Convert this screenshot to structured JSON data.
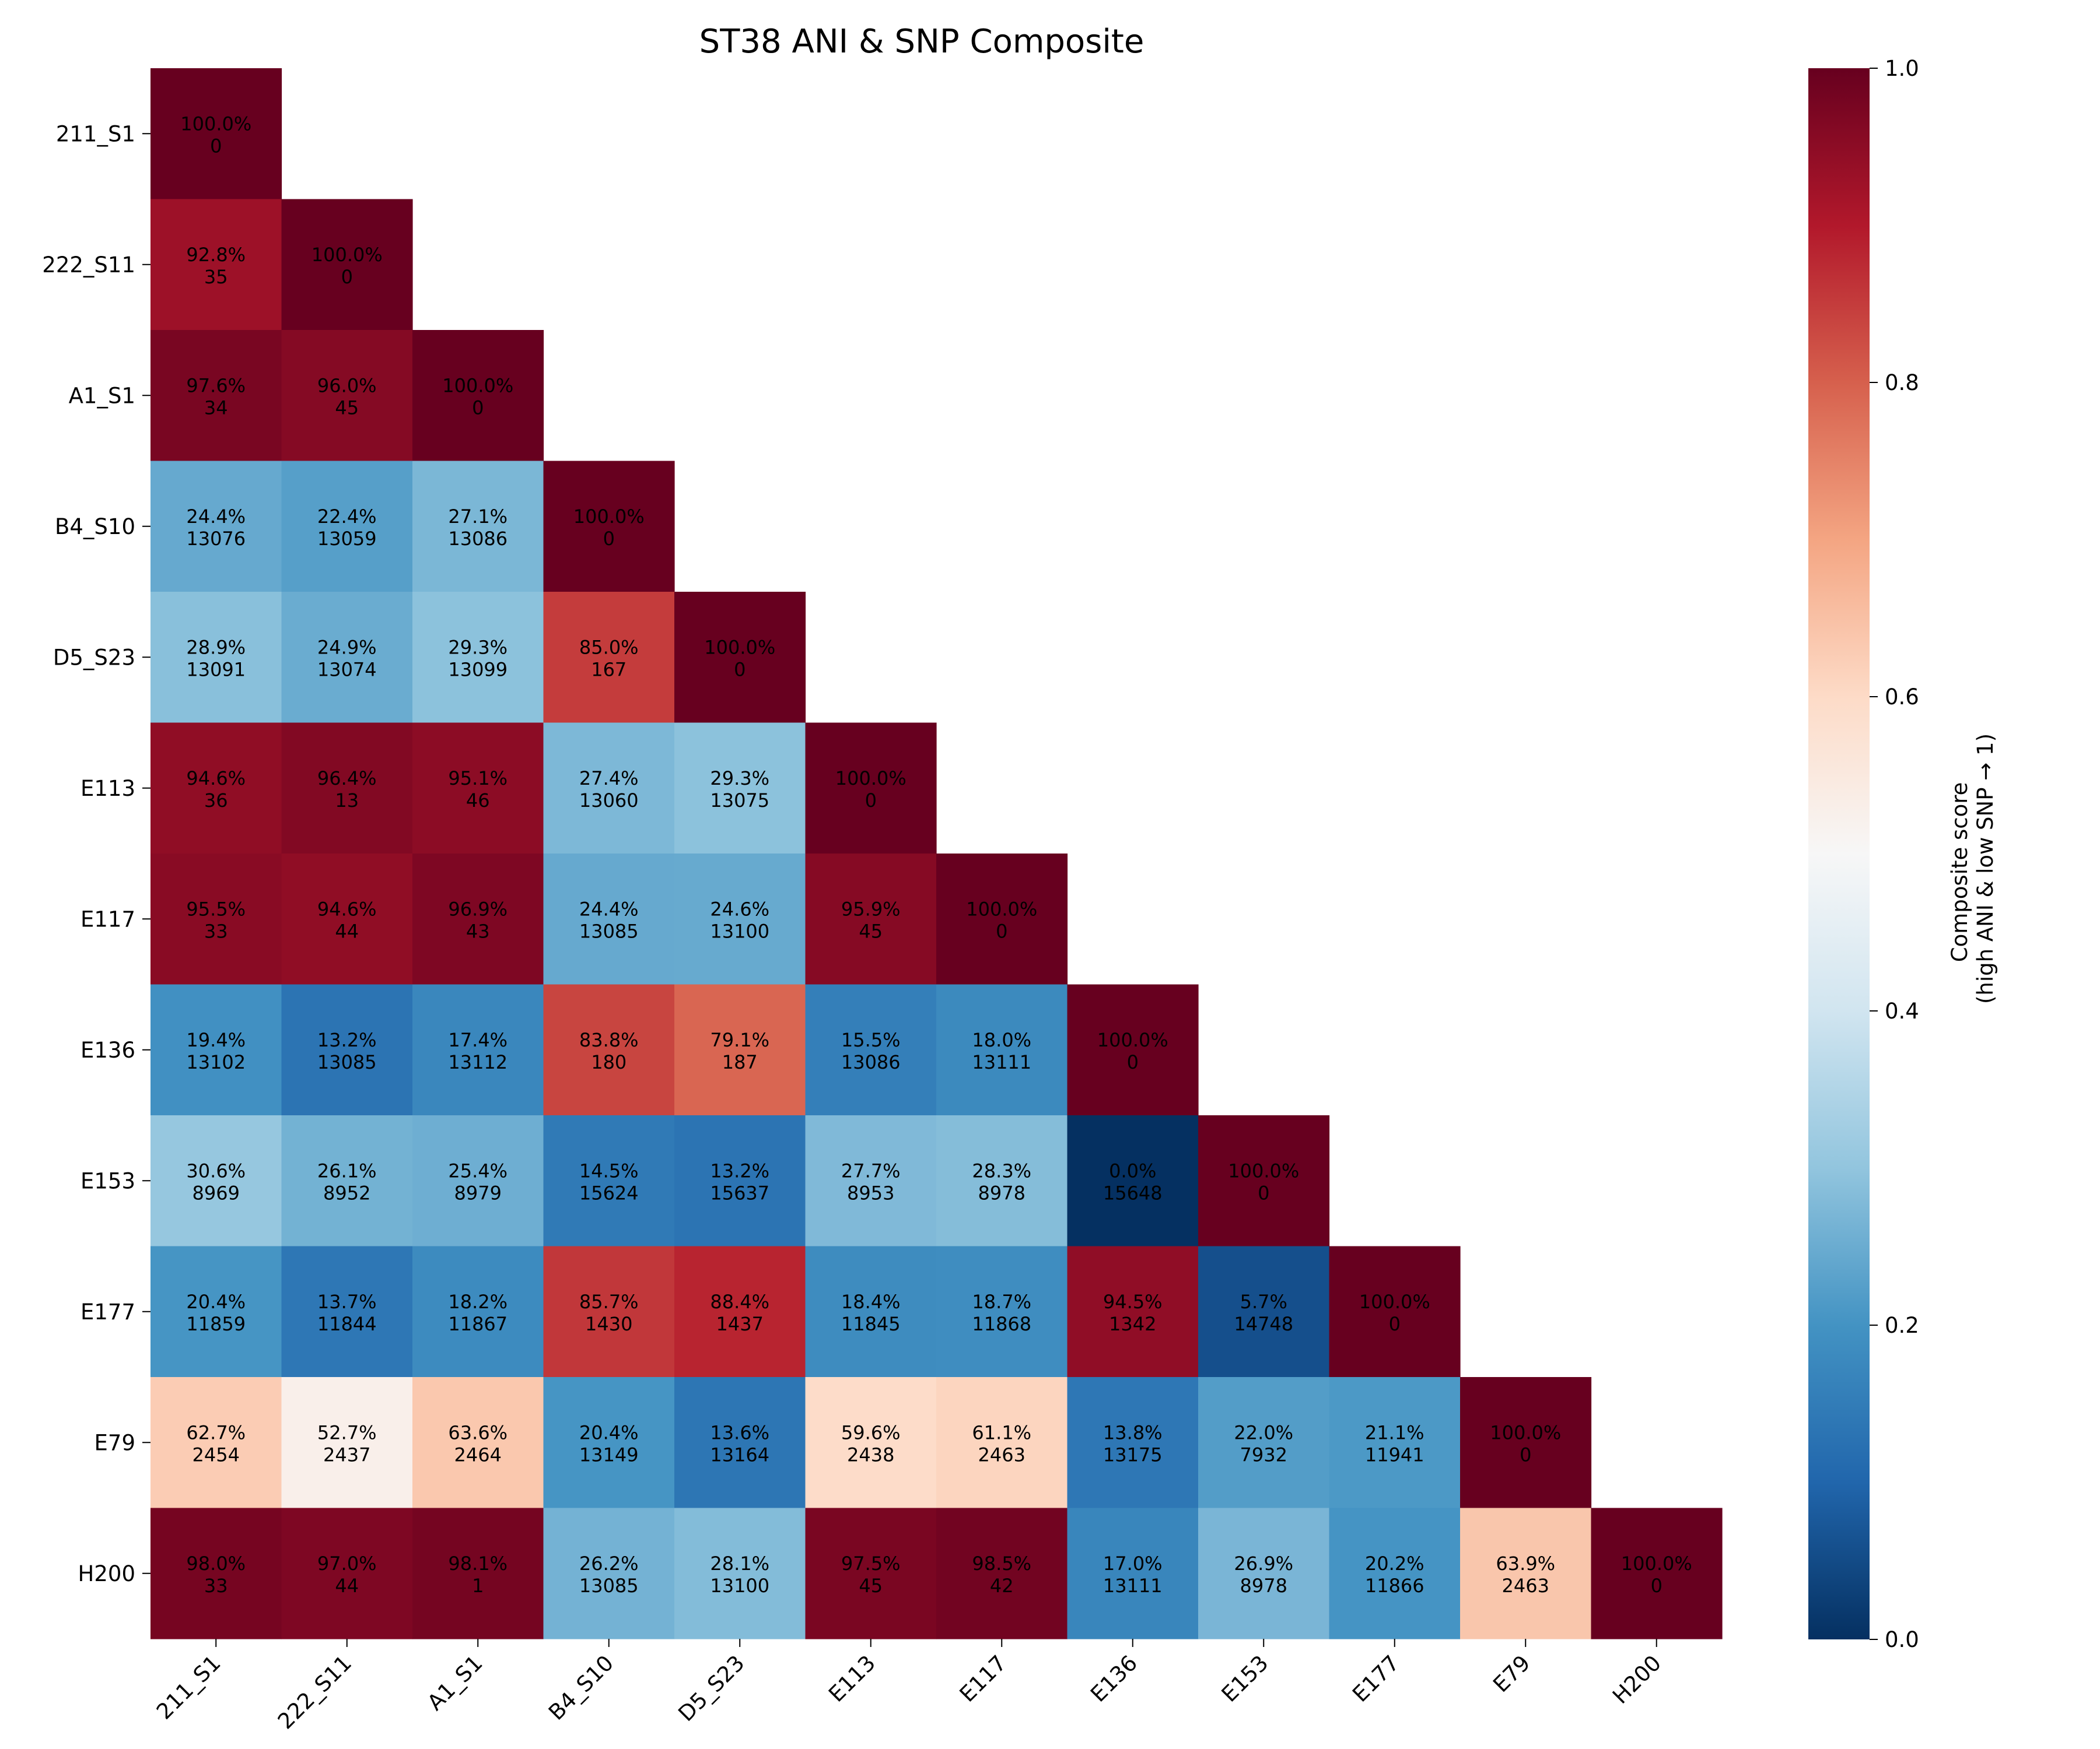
{
  "chart_data": {
    "type": "heatmap",
    "title": "ST38 ANI & SNP Composite",
    "xlabel": "",
    "ylabel": "",
    "labels": [
      "211_S1",
      "222_S11",
      "A1_S1",
      "B4_S10",
      "D5_S23",
      "E113",
      "E117",
      "E136",
      "E153",
      "E177",
      "E79",
      "H200"
    ],
    "lower_triangle_only": true,
    "composite_pct": [
      [
        "100.0%"
      ],
      [
        "92.8%",
        "100.0%"
      ],
      [
        "97.6%",
        "96.0%",
        "100.0%"
      ],
      [
        "24.4%",
        "22.4%",
        "27.1%",
        "100.0%"
      ],
      [
        "28.9%",
        "24.9%",
        "29.3%",
        "85.0%",
        "100.0%"
      ],
      [
        "94.6%",
        "96.4%",
        "95.1%",
        "27.4%",
        "29.3%",
        "100.0%"
      ],
      [
        "95.5%",
        "94.6%",
        "96.9%",
        "24.4%",
        "24.6%",
        "95.9%",
        "100.0%"
      ],
      [
        "19.4%",
        "13.2%",
        "17.4%",
        "83.8%",
        "79.1%",
        "15.5%",
        "18.0%",
        "100.0%"
      ],
      [
        "30.6%",
        "26.1%",
        "25.4%",
        "14.5%",
        "13.2%",
        "27.7%",
        "28.3%",
        "0.0%",
        "100.0%"
      ],
      [
        "20.4%",
        "13.7%",
        "18.2%",
        "85.7%",
        "88.4%",
        "18.4%",
        "18.7%",
        "94.5%",
        "5.7%",
        "100.0%"
      ],
      [
        "62.7%",
        "52.7%",
        "63.6%",
        "20.4%",
        "13.6%",
        "59.6%",
        "61.1%",
        "13.8%",
        "22.0%",
        "21.1%",
        "100.0%"
      ],
      [
        "98.0%",
        "97.0%",
        "98.1%",
        "26.2%",
        "28.1%",
        "97.5%",
        "98.5%",
        "17.0%",
        "26.9%",
        "20.2%",
        "63.9%",
        "100.0%"
      ]
    ],
    "snp": [
      [
        "0"
      ],
      [
        "35",
        "0"
      ],
      [
        "34",
        "45",
        "0"
      ],
      [
        "13076",
        "13059",
        "13086",
        "0"
      ],
      [
        "13091",
        "13074",
        "13099",
        "167",
        "0"
      ],
      [
        "36",
        "13",
        "46",
        "13060",
        "13075",
        "0"
      ],
      [
        "33",
        "44",
        "43",
        "13085",
        "13100",
        "45",
        "0"
      ],
      [
        "13102",
        "13085",
        "13112",
        "180",
        "187",
        "13086",
        "13111",
        "0"
      ],
      [
        "8969",
        "8952",
        "8979",
        "15624",
        "15637",
        "8953",
        "8978",
        "15648",
        "0"
      ],
      [
        "11859",
        "11844",
        "11867",
        "1430",
        "1437",
        "11845",
        "11868",
        "1342",
        "14748",
        "0"
      ],
      [
        "2454",
        "2437",
        "2464",
        "13149",
        "13164",
        "2438",
        "2463",
        "13175",
        "7932",
        "11941",
        "0"
      ],
      [
        "33",
        "44",
        "1",
        "13085",
        "13100",
        "45",
        "42",
        "13111",
        "8978",
        "11866",
        "2463",
        "0"
      ]
    ],
    "colorbar": {
      "label_line1": "Composite score",
      "label_line2": "(high ANI & low SNP → 1)",
      "range": [
        0,
        1
      ],
      "ticks": [
        "0.0",
        "0.2",
        "0.4",
        "0.6",
        "0.8",
        "1.0"
      ],
      "colormap": "RdBu_r",
      "colors": [
        "#053061",
        "#2166ac",
        "#4393c3",
        "#92c5de",
        "#d1e5f0",
        "#f7f7f7",
        "#fddbc7",
        "#f4a582",
        "#d6604d",
        "#b2182b",
        "#67001f"
      ]
    }
  }
}
